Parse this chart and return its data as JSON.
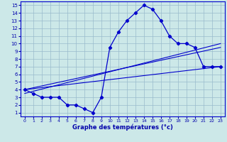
{
  "title": "Graphe des températures (°c)",
  "x_hours": [
    0,
    1,
    2,
    3,
    4,
    5,
    6,
    7,
    8,
    9,
    10,
    11,
    12,
    13,
    14,
    15,
    16,
    17,
    18,
    19,
    20,
    21,
    22,
    23
  ],
  "temp_main": [
    4.0,
    3.5,
    3.0,
    3.0,
    3.0,
    2.0,
    2.0,
    1.5,
    1.0,
    3.0,
    9.5,
    11.5,
    13.0,
    14.0,
    15.0,
    14.5,
    13.0,
    11.0,
    10.0,
    10.0,
    9.5,
    7.0,
    7.0,
    7.0
  ],
  "ylim": [
    1,
    15
  ],
  "xlim": [
    0,
    23
  ],
  "yticks": [
    1,
    2,
    3,
    4,
    5,
    6,
    7,
    8,
    9,
    10,
    11,
    12,
    13,
    14,
    15
  ],
  "xticks": [
    0,
    1,
    2,
    3,
    4,
    5,
    6,
    7,
    8,
    9,
    10,
    11,
    12,
    13,
    14,
    15,
    16,
    17,
    18,
    19,
    20,
    21,
    22,
    23
  ],
  "line_color": "#0000cc",
  "bg_color": "#cce8e8",
  "grid_color": "#99bbcc",
  "label_color": "#0000aa",
  "line1_start": 4.0,
  "line1_end": 7.0,
  "line2_start": 4.0,
  "line2_end": 9.5,
  "line3_start": 3.5,
  "line3_end": 10.0
}
